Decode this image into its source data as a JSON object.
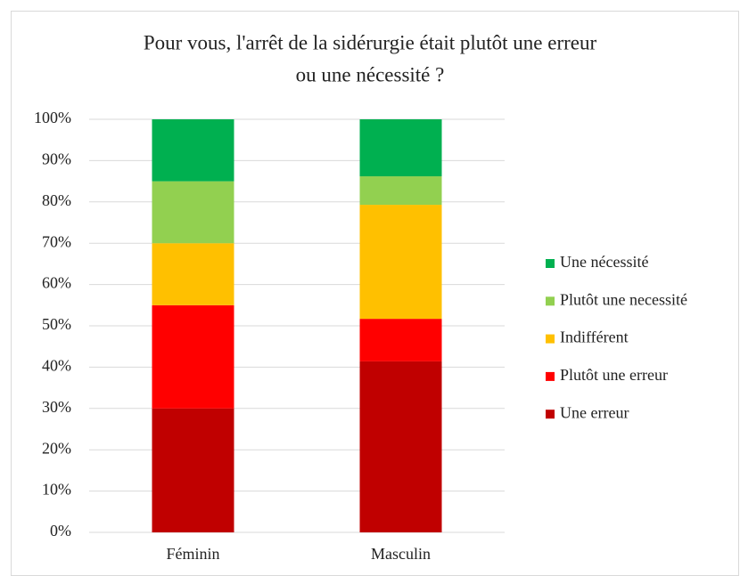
{
  "chart_data": {
    "type": "stacked_bar",
    "title": [
      "Pour vous, l'arrêt de la sidérurgie était plutôt une erreur",
      "ou une nécessité ?"
    ],
    "categories": [
      "Féminin",
      "Masculin"
    ],
    "series": [
      {
        "name": "Une erreur",
        "color": "#c00000",
        "values": [
          30,
          41.4
        ]
      },
      {
        "name": "Plutôt une erreur",
        "color": "#ff0000",
        "values": [
          25,
          10.3
        ]
      },
      {
        "name": "Indifférent",
        "color": "#ffc000",
        "values": [
          15,
          27.6
        ]
      },
      {
        "name": "Plutôt une necessité",
        "color": "#92d050",
        "values": [
          15,
          6.9
        ]
      },
      {
        "name": "Une nécessité",
        "color": "#00b050",
        "values": [
          15,
          13.8
        ]
      }
    ],
    "ylim": [
      0,
      100
    ],
    "yticks": [
      {
        "value": 0,
        "label": "0%"
      },
      {
        "value": 10,
        "label": "10%"
      },
      {
        "value": 20,
        "label": "20%"
      },
      {
        "value": 30,
        "label": "30%"
      },
      {
        "value": 40,
        "label": "40%"
      },
      {
        "value": 50,
        "label": "50%"
      },
      {
        "value": 60,
        "label": "60%"
      },
      {
        "value": 70,
        "label": "70%"
      },
      {
        "value": 80,
        "label": "80%"
      },
      {
        "value": 90,
        "label": "90%"
      },
      {
        "value": 100,
        "label": "100%"
      }
    ],
    "grid": true,
    "legend": "right"
  }
}
